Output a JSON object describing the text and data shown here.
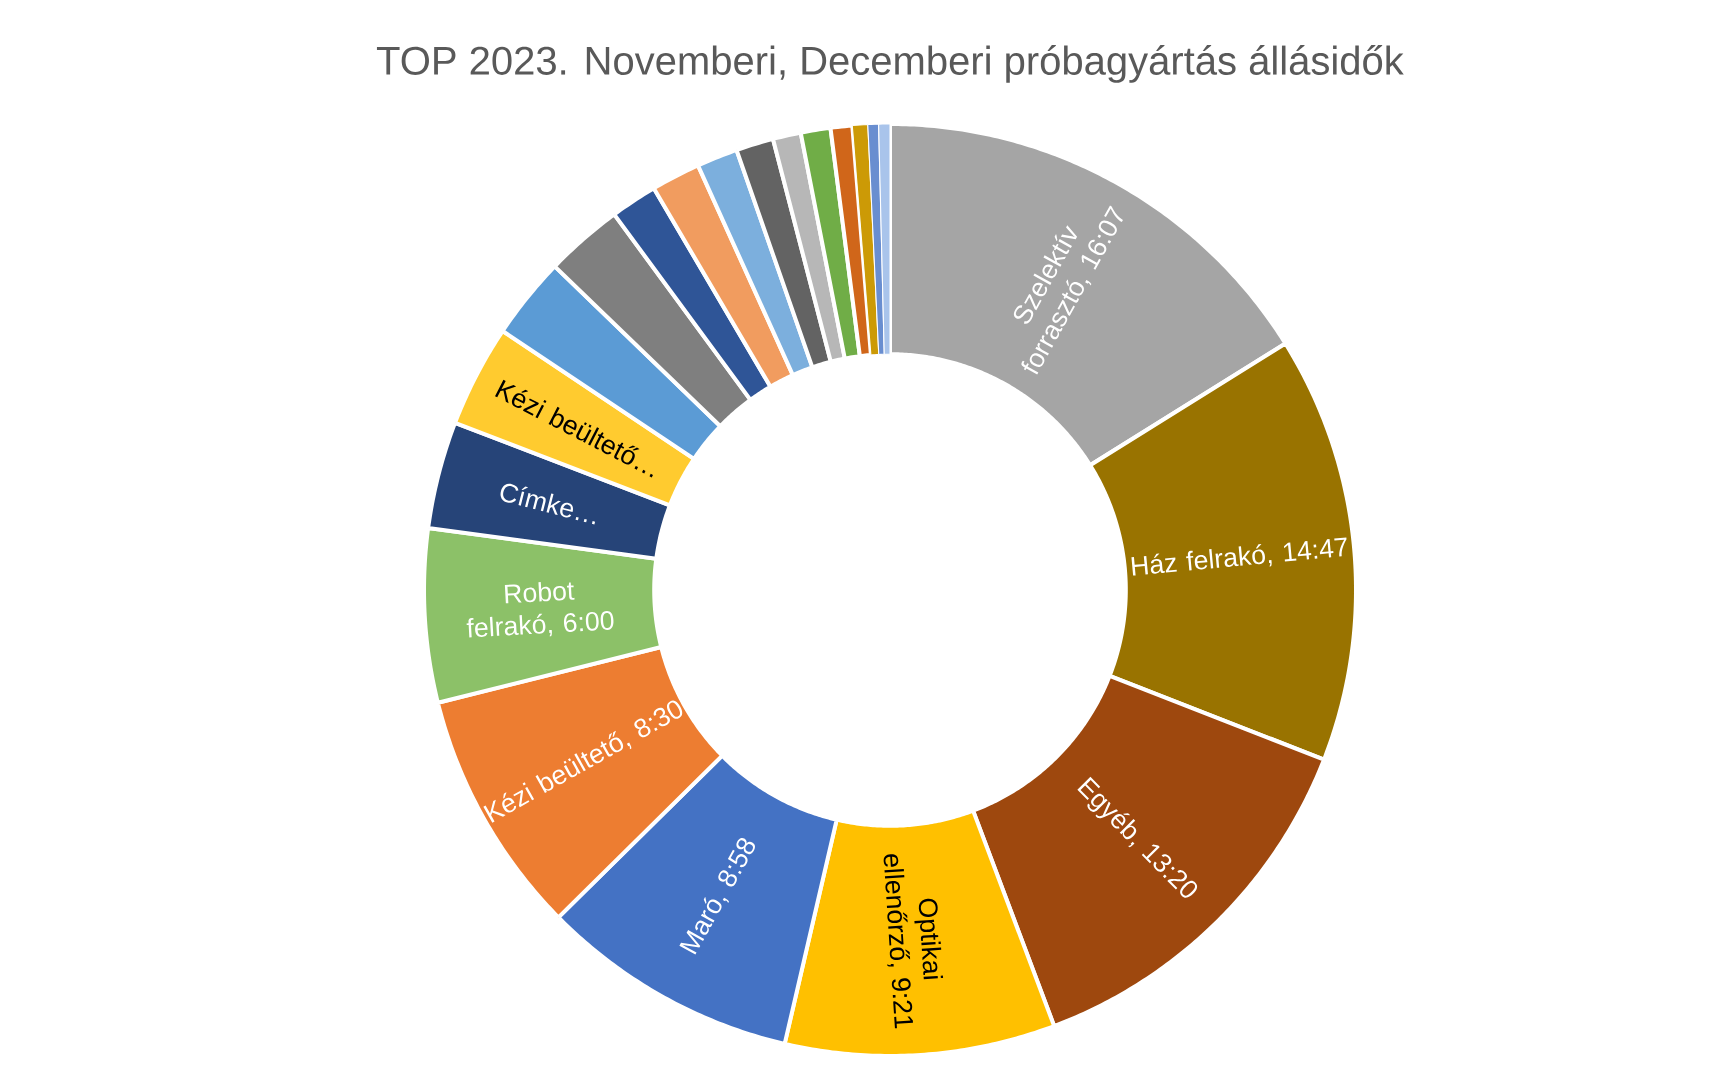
{
  "chart_data": {
    "type": "donut",
    "title": "TOP 2023. Novemberi, Decemberi próbagyártás állásidők",
    "categories": [
      "Szelektív forrasztó, 16:07",
      "Ház felrakó, 14:47",
      "Egyéb, 13:20",
      "Optikai ellenőrző, 9:21",
      "Maró, 8:58",
      "Kézi beültető, 8:30",
      "Robot felrakó, 6:00",
      "Címke…",
      "Kézi beültető…",
      null,
      null,
      null,
      null,
      null,
      null,
      null,
      null,
      null,
      null,
      null,
      null
    ],
    "values": [
      16.13,
      14.8,
      13.34,
      9.36,
      8.97,
      8.51,
      6.01,
      3.72,
      3.54,
      2.84,
      2.7,
      1.62,
      1.7,
      1.42,
      1.3,
      0.97,
      1.03,
      0.75,
      0.53,
      0.37,
      0.39
    ],
    "colors": [
      "#a5a5a5",
      "#997300",
      "#9e480e",
      "#ffc000",
      "#4472c4",
      "#ed7d31",
      "#8cc168",
      "#264478",
      "#ffcb2f",
      "#5b9bd5",
      "#7f7f7f",
      "#2f5597",
      "#f19c5f",
      "#7cafdd",
      "#636363",
      "#b7b7b7",
      "#70ad47",
      "#d0661a",
      "#cc9a06",
      "#698ed0",
      "#a9c4eb"
    ]
  }
}
